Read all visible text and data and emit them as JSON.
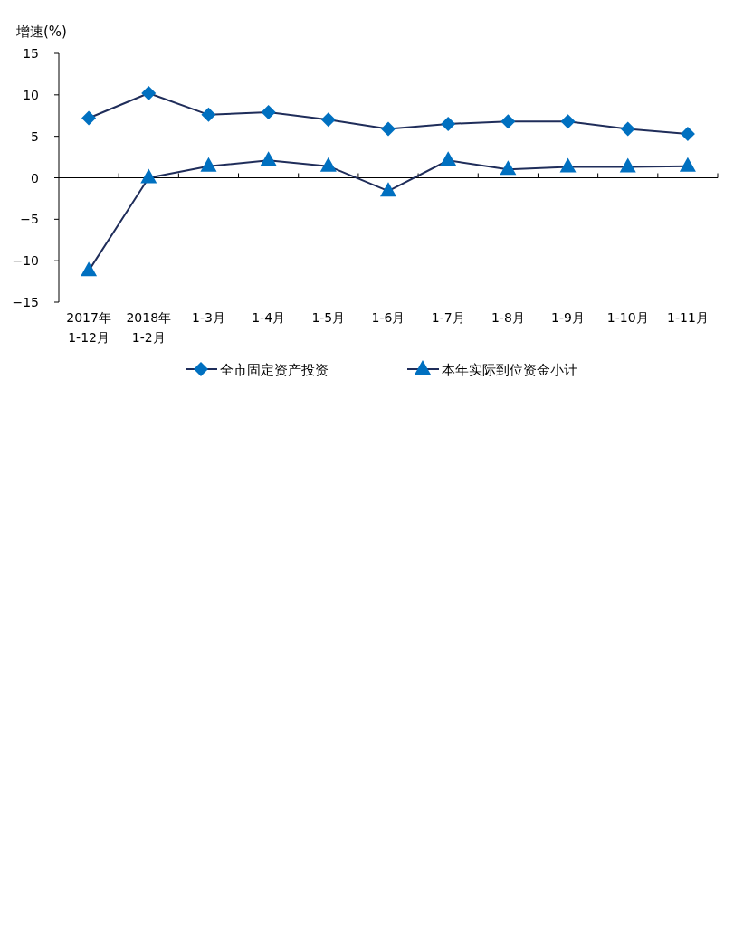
{
  "chart_data": {
    "type": "line",
    "ylabel": "增速(%)",
    "categories": [
      "2017年\n1-12月",
      "2018年\n1-2月",
      "1-3月",
      "1-4月",
      "1-5月",
      "1-6月",
      "1-7月",
      "1-8月",
      "1-9月",
      "1-10月",
      "1-11月"
    ],
    "series": [
      {
        "name": "全市固定资产投资",
        "color": "#0070c0",
        "marker": "diamond",
        "values": [
          7.2,
          10.2,
          7.6,
          7.9,
          7.0,
          5.9,
          6.5,
          6.8,
          6.8,
          5.9,
          5.3
        ]
      },
      {
        "name": "本年实际到位资金小计",
        "color": "#0070c0",
        "marker": "triangle",
        "values": [
          -11.2,
          0,
          1.4,
          2.1,
          1.4,
          -1.6,
          2.1,
          1.0,
          1.3,
          1.3,
          1.4
        ]
      }
    ],
    "ylim": [
      -15,
      15
    ],
    "yticks": [
      -15,
      -10,
      -5,
      0,
      5,
      10,
      15
    ],
    "legend": "bottom"
  }
}
